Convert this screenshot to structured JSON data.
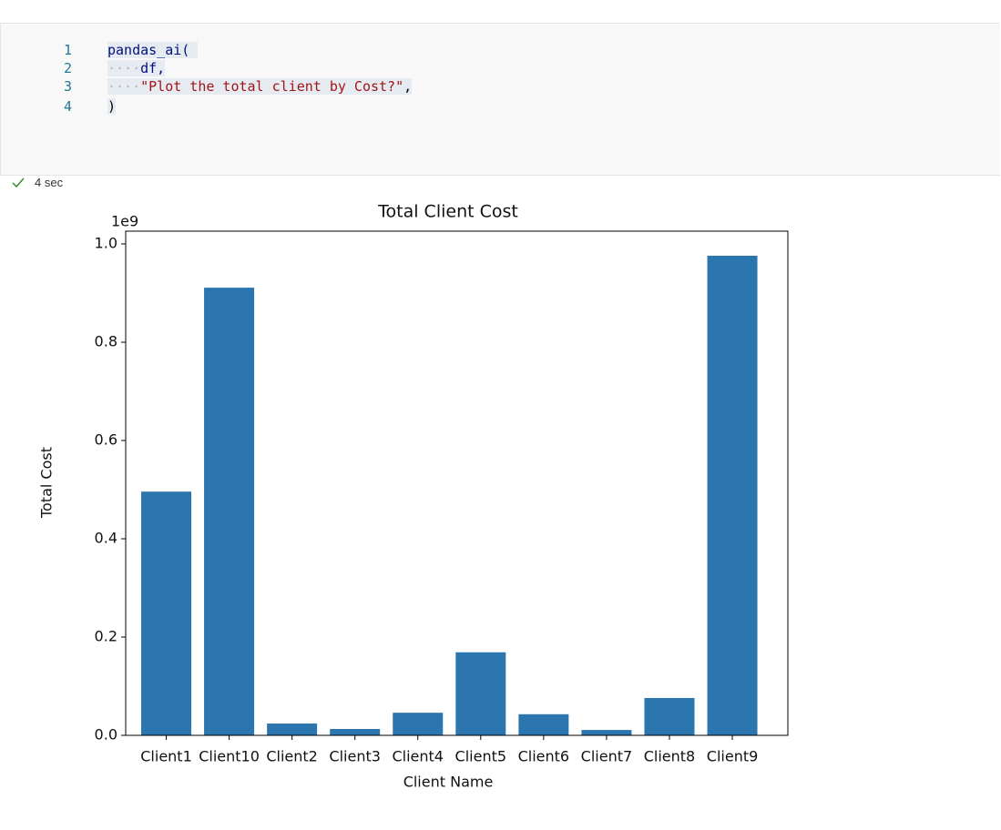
{
  "cell": {
    "line_numbers": [
      "1",
      "2",
      "3",
      "4"
    ],
    "code": {
      "call": "pandas_ai(",
      "arg1": "df,",
      "arg2": "\"Plot the total client by Cost?\"",
      "arg2_comma": ",",
      "close": ")"
    },
    "status": "4 sec"
  },
  "chart_data": {
    "type": "bar",
    "title": "Total Client Cost",
    "x_label": "Client Name",
    "y_label": "Total Cost",
    "y_offset_label": "1e9",
    "categories": [
      "Client1",
      "Client10",
      "Client2",
      "Client3",
      "Client4",
      "Client5",
      "Client6",
      "Client7",
      "Client8",
      "Client9"
    ],
    "values": [
      0.496,
      0.911,
      0.024,
      0.013,
      0.046,
      0.169,
      0.043,
      0.011,
      0.076,
      0.976
    ],
    "color": "#2c76b0",
    "ylim": [
      0,
      1.026
    ],
    "yticks": [
      {
        "value": 0,
        "label": "0.0"
      },
      0.2,
      0.4,
      0.6,
      0.8,
      {
        "value": 1,
        "label": "1.0"
      }
    ]
  }
}
